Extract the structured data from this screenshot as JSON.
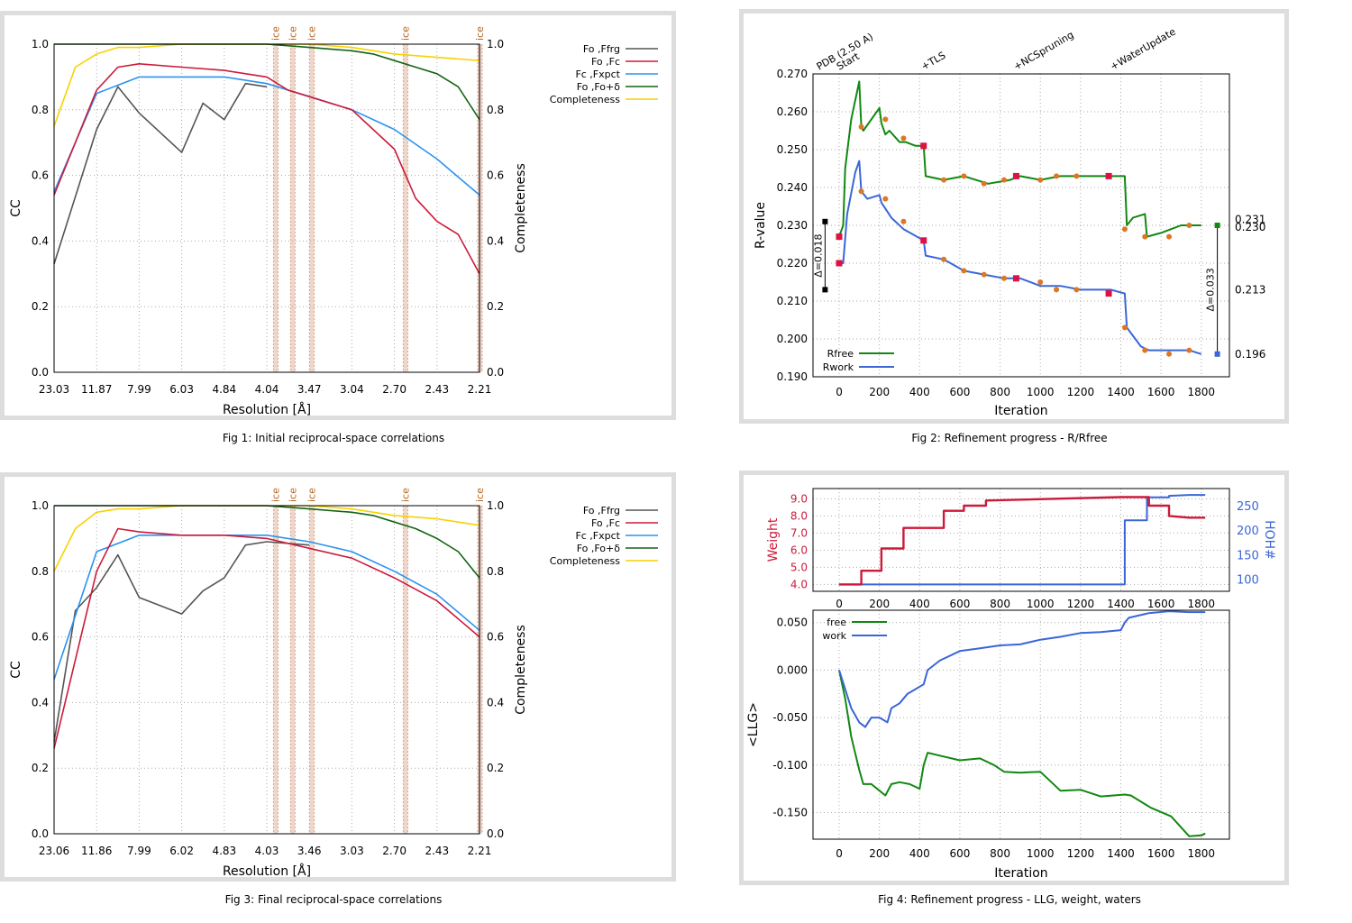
{
  "captions": {
    "fig1": "Fig 1:  Initial reciprocal-space correlations",
    "fig2": "Fig 2:  Refinement progress - R/Rfree",
    "fig3": "Fig 3:  Final reciprocal-space correlations",
    "fig4": "Fig 4:  Refinement progress - LLG, weight, waters"
  },
  "colors": {
    "gray": "#555555",
    "red": "#cc1a3a",
    "blue": "#2a93f0",
    "green": "#146414",
    "yellow": "#f7d200",
    "rfree": "#118811",
    "rwork": "#3a66d8",
    "marker_orange": "#dd7722",
    "marker_red": "#dd1144",
    "weight": "#cc1a3a",
    "hoh": "#3a66d8",
    "ice": "#d9a58a"
  },
  "chart_data": [
    {
      "type": "line",
      "panel": "fig1",
      "xlabel": "Resolution [Å]",
      "ylabel": "CC",
      "y2label": "Completeness",
      "xticks": [
        "23.03",
        "11.87",
        "7.99",
        "6.03",
        "4.84",
        "4.04",
        "3.47",
        "3.04",
        "2.70",
        "2.43",
        "2.21"
      ],
      "yticks": [
        "0.0",
        "0.2",
        "0.4",
        "0.6",
        "0.8",
        "1.0"
      ],
      "y2ticks": [
        "0.0",
        "0.2",
        "0.4",
        "0.6",
        "0.8",
        "1.0"
      ],
      "ylim": [
        0,
        1
      ],
      "y2lim": [
        0,
        1
      ],
      "ice_label": "ice",
      "ice_positions": [
        5.2,
        5.6,
        6.05,
        8.25,
        10.0
      ],
      "legend": {
        "fo_ffrg": "Fo ,Ffrg",
        "fo_fc": "Fo ,Fc",
        "fc_fxpct": "Fc ,Fxpct",
        "fo_fo_d": "Fo ,Fo+δ",
        "completeness": "Completeness"
      },
      "series": [
        {
          "key": "fo_ffrg",
          "name": "Fo ,Ffrg",
          "color": "#555555",
          "x": [
            0,
            1,
            1.5,
            2,
            3,
            3.5,
            4,
            4.5,
            5
          ],
          "values": [
            0.33,
            0.74,
            0.87,
            0.79,
            0.67,
            0.82,
            0.77,
            0.88,
            0.87
          ]
        },
        {
          "key": "fo_fc",
          "name": "Fo ,Fc",
          "color": "#cc1a3a",
          "x": [
            0,
            1,
            1.5,
            2,
            3,
            4,
            5,
            5.5,
            6,
            7,
            8,
            8.5,
            9,
            9.5,
            10
          ],
          "values": [
            0.54,
            0.86,
            0.93,
            0.94,
            0.93,
            0.92,
            0.9,
            0.86,
            0.84,
            0.8,
            0.68,
            0.53,
            0.46,
            0.42,
            0.3
          ]
        },
        {
          "key": "fc_fxpct",
          "name": "Fc ,Fxpct",
          "color": "#2a93f0",
          "x": [
            0,
            1,
            2,
            3,
            4,
            5,
            6,
            7,
            8,
            9,
            10
          ],
          "values": [
            0.55,
            0.85,
            0.9,
            0.9,
            0.9,
            0.88,
            0.84,
            0.8,
            0.74,
            0.65,
            0.54
          ]
        },
        {
          "key": "fo_fo_d",
          "name": "Fo ,Fo+δ",
          "color": "#146414",
          "x": [
            0,
            2,
            4,
            5,
            6,
            7,
            7.5,
            8,
            8.5,
            9,
            9.5,
            10
          ],
          "values": [
            1.0,
            1.0,
            1.0,
            1.0,
            0.99,
            0.98,
            0.97,
            0.95,
            0.93,
            0.91,
            0.87,
            0.77
          ]
        },
        {
          "key": "completeness",
          "name": "Completeness",
          "color": "#f7d200",
          "x": [
            0,
            0.5,
            1,
            1.5,
            2,
            3,
            4,
            5,
            6,
            7,
            8,
            9,
            10
          ],
          "values": [
            0.75,
            0.93,
            0.97,
            0.99,
            0.99,
            1.0,
            1.0,
            1.0,
            1.0,
            0.99,
            0.97,
            0.96,
            0.95
          ]
        }
      ]
    },
    {
      "type": "line",
      "panel": "fig2",
      "xlabel": "Iteration",
      "ylabel": "R-value",
      "xticks": [
        "0",
        "200",
        "400",
        "600",
        "800",
        "1000",
        "1200",
        "1400",
        "1600",
        "1800"
      ],
      "yticks": [
        "0.190",
        "0.200",
        "0.210",
        "0.220",
        "0.230",
        "0.240",
        "0.250",
        "0.260",
        "0.270"
      ],
      "xlim": [
        -130,
        1940
      ],
      "ylim": [
        0.19,
        0.27
      ],
      "top_labels": [
        "PDB (2.50 A)",
        "Start",
        "+TLS",
        "+NCSpruning",
        "+WaterUpdate"
      ],
      "top_label_x": [
        -100,
        0,
        420,
        880,
        1360
      ],
      "delta_left": "Δ=0.018",
      "delta_right": "Δ=0.033",
      "right_labels": [
        "0.231",
        "0.230",
        "0.213",
        "0.196"
      ],
      "legend": {
        "rfree": "Rfree",
        "rwork": "Rwork"
      },
      "series": [
        {
          "key": "rfree",
          "name": "Rfree",
          "color": "#118811",
          "x": [
            0,
            20,
            30,
            60,
            100,
            110,
            120,
            200,
            210,
            230,
            250,
            300,
            330,
            380,
            420,
            430,
            520,
            620,
            740,
            850,
            900,
            1000,
            1100,
            1150,
            1250,
            1360,
            1420,
            1430,
            1460,
            1520,
            1530,
            1600,
            1700,
            1800
          ],
          "values": [
            0.227,
            0.23,
            0.245,
            0.258,
            0.268,
            0.256,
            0.255,
            0.261,
            0.257,
            0.254,
            0.255,
            0.252,
            0.252,
            0.251,
            0.251,
            0.243,
            0.242,
            0.243,
            0.241,
            0.242,
            0.243,
            0.242,
            0.243,
            0.243,
            0.243,
            0.243,
            0.243,
            0.23,
            0.232,
            0.233,
            0.227,
            0.228,
            0.23,
            0.23
          ]
        },
        {
          "key": "rwork",
          "name": "Rwork",
          "color": "#3a66d8",
          "x": [
            0,
            20,
            40,
            80,
            100,
            110,
            140,
            200,
            210,
            260,
            320,
            420,
            430,
            520,
            620,
            720,
            820,
            900,
            1000,
            1100,
            1200,
            1300,
            1350,
            1420,
            1430,
            1500,
            1540,
            1640,
            1740,
            1800
          ],
          "values": [
            0.22,
            0.22,
            0.233,
            0.244,
            0.247,
            0.239,
            0.237,
            0.238,
            0.236,
            0.232,
            0.229,
            0.226,
            0.222,
            0.221,
            0.218,
            0.217,
            0.216,
            0.216,
            0.214,
            0.214,
            0.213,
            0.213,
            0.213,
            0.212,
            0.203,
            0.198,
            0.197,
            0.197,
            0.197,
            0.196
          ]
        }
      ],
      "markers_orange": [
        [
          110,
          0.256
        ],
        [
          230,
          0.258
        ],
        [
          320,
          0.253
        ],
        [
          520,
          0.242
        ],
        [
          620,
          0.243
        ],
        [
          720,
          0.241
        ],
        [
          820,
          0.242
        ],
        [
          1000,
          0.242
        ],
        [
          1080,
          0.243
        ],
        [
          1180,
          0.243
        ],
        [
          1420,
          0.229
        ],
        [
          1520,
          0.227
        ],
        [
          1640,
          0.227
        ],
        [
          1740,
          0.23
        ],
        [
          110,
          0.239
        ],
        [
          230,
          0.237
        ],
        [
          320,
          0.231
        ],
        [
          520,
          0.221
        ],
        [
          620,
          0.218
        ],
        [
          720,
          0.217
        ],
        [
          820,
          0.216
        ],
        [
          1000,
          0.215
        ],
        [
          1080,
          0.213
        ],
        [
          1180,
          0.213
        ],
        [
          1420,
          0.203
        ],
        [
          1520,
          0.197
        ],
        [
          1640,
          0.196
        ],
        [
          1740,
          0.197
        ]
      ],
      "markers_red": [
        [
          0,
          0.227
        ],
        [
          0,
          0.22
        ],
        [
          420,
          0.251
        ],
        [
          420,
          0.226
        ],
        [
          880,
          0.243
        ],
        [
          880,
          0.216
        ],
        [
          1340,
          0.243
        ],
        [
          1340,
          0.212
        ]
      ],
      "end_markers": {
        "rfree_x": 1880,
        "rfree": 0.23,
        "rwork": 0.196
      }
    },
    {
      "type": "line",
      "panel": "fig3",
      "xlabel": "Resolution [Å]",
      "ylabel": "CC",
      "y2label": "Completeness",
      "xticks": [
        "23.06",
        "11.86",
        "7.99",
        "6.02",
        "4.83",
        "4.03",
        "3.46",
        "3.03",
        "2.70",
        "2.43",
        "2.21"
      ],
      "yticks": [
        "0.0",
        "0.2",
        "0.4",
        "0.6",
        "0.8",
        "1.0"
      ],
      "y2ticks": [
        "0.0",
        "0.2",
        "0.4",
        "0.6",
        "0.8",
        "1.0"
      ],
      "ylim": [
        0,
        1
      ],
      "y2lim": [
        0,
        1
      ],
      "ice_label": "ice",
      "ice_positions": [
        5.2,
        5.6,
        6.05,
        8.25,
        10.0
      ],
      "legend": {
        "fo_ffrg": "Fo ,Ffrg",
        "fo_fc": "Fo ,Fc",
        "fc_fxpct": "Fc ,Fxpct",
        "fo_fo_d": "Fo ,Fo+δ",
        "completeness": "Completeness"
      },
      "series": [
        {
          "key": "fo_ffrg",
          "name": "Fo ,Ffrg",
          "color": "#555555",
          "x": [
            0,
            0.5,
            1,
            1.5,
            2,
            3,
            3.5,
            4,
            4.5,
            5,
            6
          ],
          "values": [
            0.28,
            0.68,
            0.75,
            0.85,
            0.72,
            0.67,
            0.74,
            0.78,
            0.88,
            0.89,
            0.88
          ]
        },
        {
          "key": "fo_fc",
          "name": "Fo ,Fc",
          "color": "#cc1a3a",
          "x": [
            0,
            1,
            1.5,
            2,
            3,
            4,
            5,
            6,
            7,
            8,
            9,
            10
          ],
          "values": [
            0.26,
            0.8,
            0.93,
            0.92,
            0.91,
            0.91,
            0.9,
            0.87,
            0.84,
            0.78,
            0.71,
            0.6
          ]
        },
        {
          "key": "fc_fxpct",
          "name": "Fc ,Fxpct",
          "color": "#2a93f0",
          "x": [
            0,
            1,
            2,
            3,
            4,
            5,
            6,
            7,
            8,
            9,
            10
          ],
          "values": [
            0.47,
            0.86,
            0.91,
            0.91,
            0.91,
            0.91,
            0.89,
            0.86,
            0.8,
            0.73,
            0.62
          ]
        },
        {
          "key": "fo_fo_d",
          "name": "Fo ,Fo+δ",
          "color": "#146414",
          "x": [
            0,
            2,
            4,
            5,
            6,
            7,
            7.5,
            8,
            8.5,
            9,
            9.5,
            10
          ],
          "values": [
            1.0,
            1.0,
            1.0,
            1.0,
            0.99,
            0.98,
            0.97,
            0.95,
            0.93,
            0.9,
            0.86,
            0.78
          ]
        },
        {
          "key": "completeness",
          "name": "Completeness",
          "color": "#f7d200",
          "x": [
            0,
            0.5,
            1,
            1.5,
            2,
            3,
            4,
            5,
            6,
            7,
            8,
            9,
            10
          ],
          "values": [
            0.8,
            0.93,
            0.98,
            0.99,
            0.99,
            1.0,
            1.0,
            1.0,
            1.0,
            0.99,
            0.97,
            0.96,
            0.94
          ]
        }
      ]
    },
    {
      "type": "line",
      "panel": "fig4-top",
      "ylabel": "Weight",
      "y2label": "HOH#",
      "xticks": [
        "0",
        "200",
        "400",
        "600",
        "800",
        "1000",
        "1200",
        "1400",
        "1600",
        "1800"
      ],
      "yticks": [
        "4.0",
        "5.0",
        "6.0",
        "7.0",
        "8.0",
        "9.0"
      ],
      "y2ticks": [
        "100",
        "150",
        "200",
        "250"
      ],
      "xlim": [
        -130,
        1940
      ],
      "ylim": [
        3.6,
        9.6
      ],
      "y2lim": [
        75,
        285
      ],
      "series": [
        {
          "key": "weight",
          "name": "Weight",
          "color": "#cc1a3a",
          "x": [
            0,
            110,
            110,
            210,
            210,
            320,
            320,
            520,
            520,
            620,
            620,
            730,
            730,
            1400,
            1540,
            1540,
            1640,
            1640,
            1740,
            1820
          ],
          "values": [
            4.0,
            4.0,
            4.8,
            4.8,
            6.1,
            6.1,
            7.3,
            7.3,
            8.3,
            8.3,
            8.6,
            8.6,
            8.9,
            9.1,
            9.1,
            8.6,
            8.6,
            8.0,
            7.9,
            7.9
          ]
        },
        {
          "key": "hoh",
          "name": "HOH#",
          "color": "#3a66d8",
          "x": [
            0,
            1420,
            1420,
            1530,
            1530,
            1640,
            1640,
            1740,
            1820
          ],
          "values": [
            89,
            89,
            220,
            220,
            267,
            267,
            270,
            272,
            272
          ]
        }
      ]
    },
    {
      "type": "line",
      "panel": "fig4-bottom",
      "xlabel": "Iteration",
      "ylabel": "<LLG>",
      "xticks": [
        "0",
        "200",
        "400",
        "600",
        "800",
        "1000",
        "1200",
        "1400",
        "1600",
        "1800"
      ],
      "yticks": [
        "0.050",
        "0.000",
        "-0.050",
        "-0.100",
        "-0.150"
      ],
      "xlim": [
        -130,
        1940
      ],
      "ylim": [
        -0.178,
        0.063
      ],
      "legend": {
        "free": "free",
        "work": "work"
      },
      "series": [
        {
          "key": "free",
          "name": "free",
          "color": "#118811",
          "x": [
            0,
            30,
            60,
            100,
            120,
            160,
            200,
            230,
            260,
            300,
            350,
            400,
            420,
            440,
            500,
            600,
            700,
            770,
            820,
            900,
            1000,
            1100,
            1200,
            1300,
            1420,
            1450,
            1550,
            1650,
            1740,
            1800,
            1820
          ],
          "values": [
            0,
            -0.03,
            -0.07,
            -0.105,
            -0.12,
            -0.12,
            -0.127,
            -0.132,
            -0.12,
            -0.118,
            -0.12,
            -0.125,
            -0.1,
            -0.087,
            -0.09,
            -0.095,
            -0.093,
            -0.1,
            -0.107,
            -0.108,
            -0.107,
            -0.127,
            -0.126,
            -0.133,
            -0.131,
            -0.132,
            -0.145,
            -0.154,
            -0.175,
            -0.174,
            -0.172
          ]
        },
        {
          "key": "work",
          "name": "work",
          "color": "#3a66d8",
          "x": [
            0,
            30,
            60,
            100,
            130,
            160,
            200,
            240,
            260,
            300,
            340,
            380,
            420,
            440,
            500,
            600,
            700,
            800,
            900,
            1000,
            1100,
            1200,
            1300,
            1400,
            1420,
            1440,
            1540,
            1640,
            1740,
            1820
          ],
          "values": [
            0.0,
            -0.02,
            -0.04,
            -0.055,
            -0.06,
            -0.05,
            -0.05,
            -0.055,
            -0.04,
            -0.035,
            -0.025,
            -0.02,
            -0.015,
            0.0,
            0.01,
            0.02,
            0.023,
            0.026,
            0.027,
            0.032,
            0.035,
            0.039,
            0.04,
            0.042,
            0.05,
            0.055,
            0.06,
            0.062,
            0.061,
            0.061
          ]
        }
      ]
    }
  ]
}
